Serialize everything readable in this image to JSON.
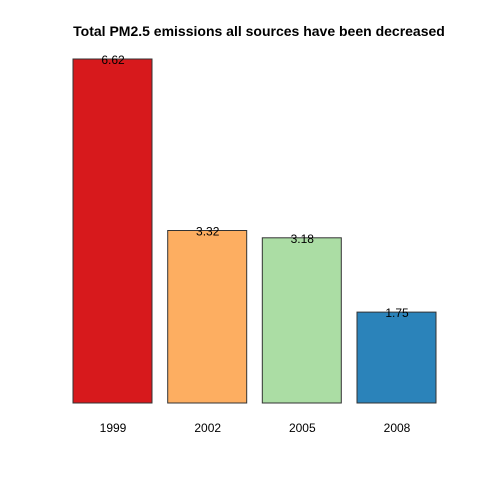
{
  "chart_data": {
    "type": "bar",
    "title": "Total PM2.5 emissions all sources have been decreased",
    "xlabel": "",
    "ylabel": "",
    "categories": [
      "1999",
      "2002",
      "2005",
      "2008"
    ],
    "values": [
      6.62,
      3.32,
      3.18,
      1.75
    ],
    "data_labels": [
      "6.62",
      "3.32",
      "3.18",
      "1.75"
    ],
    "ylim": [
      0,
      6.62
    ],
    "grid": false,
    "legend": "none",
    "colors": [
      "#d7191c",
      "#fdae61",
      "#abdda4",
      "#2b83ba"
    ],
    "bar_border_color": "#333333"
  }
}
